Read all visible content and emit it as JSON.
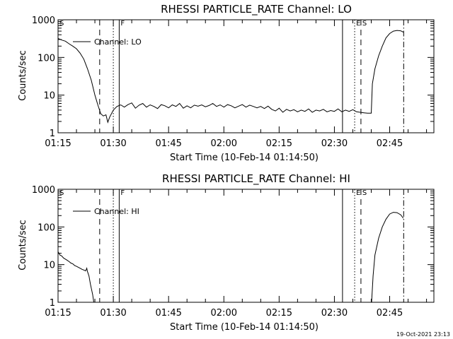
{
  "chart_data": [
    {
      "type": "line",
      "title": "RHESSI PARTICLE_RATE Channel: LO",
      "xlabel": "Start Time (10-Feb-14 01:14:50)",
      "ylabel": "Counts/sec",
      "yscale": "log",
      "ylim": [
        1,
        1000
      ],
      "xlim_minutes": [
        0,
        102
      ],
      "x_tick_labels": [
        "01:15",
        "01:30",
        "01:45",
        "02:00",
        "02:15",
        "02:30",
        "02:45"
      ],
      "x_tick_minutes": [
        0,
        15,
        30,
        45,
        60,
        75,
        90
      ],
      "y_tick_labels": [
        "1",
        "10",
        "100",
        "1000"
      ],
      "y_tick_values": [
        1,
        10,
        100,
        1000
      ],
      "legend": "Channel: LO",
      "segment_markers": [
        {
          "label": "S",
          "minute": 0,
          "style": "none"
        },
        {
          "label": "",
          "minute": 11.3,
          "style": "dashed"
        },
        {
          "label": "",
          "minute": 15,
          "style": "dotted"
        },
        {
          "label": "F",
          "minute": 16.6,
          "style": "solid"
        },
        {
          "label": "",
          "minute": 77.2,
          "style": "solid"
        },
        {
          "label": "E",
          "minute": 80.5,
          "style": "dotted"
        },
        {
          "label": "S",
          "minute": 82.2,
          "style": "dashed"
        },
        {
          "label": "",
          "minute": 93.8,
          "style": "dashdot"
        }
      ],
      "series": [
        {
          "name": "Channel: LO",
          "points": [
            [
              0,
              320
            ],
            [
              1,
              290
            ],
            [
              2,
              270
            ],
            [
              3,
              230
            ],
            [
              4,
              200
            ],
            [
              5,
              170
            ],
            [
              6,
              130
            ],
            [
              7,
              90
            ],
            [
              8,
              50
            ],
            [
              9,
              25
            ],
            [
              10,
              10
            ],
            [
              10.8,
              5.5
            ],
            [
              11.6,
              3.2
            ],
            [
              12.3,
              2.8
            ],
            [
              13,
              3.0
            ],
            [
              13.5,
              1.9
            ],
            [
              14,
              2.6
            ],
            [
              15,
              4
            ],
            [
              16,
              5
            ],
            [
              17,
              5.5
            ],
            [
              18,
              4.8
            ],
            [
              19,
              5.6
            ],
            [
              20,
              6.2
            ],
            [
              21,
              4.5
            ],
            [
              22,
              5.4
            ],
            [
              23,
              6
            ],
            [
              24,
              4.8
            ],
            [
              25,
              5.5
            ],
            [
              26,
              5
            ],
            [
              27,
              4.4
            ],
            [
              28,
              5.6
            ],
            [
              29,
              5.2
            ],
            [
              30,
              4.6
            ],
            [
              31,
              5.5
            ],
            [
              32,
              5
            ],
            [
              33,
              6
            ],
            [
              34,
              4.5
            ],
            [
              35,
              5.2
            ],
            [
              36,
              4.6
            ],
            [
              37,
              5.4
            ],
            [
              38,
              5.1
            ],
            [
              39,
              5.5
            ],
            [
              40,
              4.9
            ],
            [
              41,
              5.3
            ],
            [
              42,
              6
            ],
            [
              43,
              5
            ],
            [
              44,
              5.5
            ],
            [
              45,
              4.8
            ],
            [
              46,
              5.6
            ],
            [
              47,
              5.2
            ],
            [
              48,
              4.6
            ],
            [
              49,
              5.1
            ],
            [
              50,
              5.6
            ],
            [
              51,
              4.8
            ],
            [
              52,
              5.4
            ],
            [
              53,
              5
            ],
            [
              54,
              4.6
            ],
            [
              55,
              5
            ],
            [
              56,
              4.4
            ],
            [
              57,
              5.1
            ],
            [
              58,
              4.2
            ],
            [
              59,
              3.8
            ],
            [
              60,
              4.5
            ],
            [
              61,
              3.5
            ],
            [
              62,
              4.2
            ],
            [
              63,
              3.8
            ],
            [
              64,
              4.1
            ],
            [
              65,
              3.6
            ],
            [
              66,
              4
            ],
            [
              67,
              3.7
            ],
            [
              68,
              4.3
            ],
            [
              69,
              3.5
            ],
            [
              70,
              4
            ],
            [
              71,
              3.8
            ],
            [
              72,
              4.2
            ],
            [
              73,
              3.6
            ],
            [
              74,
              3.9
            ],
            [
              75,
              3.7
            ],
            [
              76,
              4.3
            ],
            [
              77,
              3.6
            ],
            [
              78,
              4
            ],
            [
              79,
              3.7
            ],
            [
              80,
              4.1
            ],
            [
              81,
              3.6
            ],
            [
              82,
              3.5
            ],
            [
              83,
              3.4
            ],
            [
              84,
              3.3
            ],
            [
              85,
              3.3
            ],
            [
              85.3,
              20
            ],
            [
              86,
              50
            ],
            [
              87,
              110
            ],
            [
              88,
              200
            ],
            [
              89,
              330
            ],
            [
              90,
              430
            ],
            [
              91,
              500
            ],
            [
              92,
              520
            ],
            [
              93,
              510
            ],
            [
              93.7,
              470
            ]
          ]
        }
      ]
    },
    {
      "type": "line",
      "title": "RHESSI PARTICLE_RATE Channel: HI",
      "xlabel": "Start Time (10-Feb-14 01:14:50)",
      "ylabel": "Counts/sec",
      "yscale": "log",
      "ylim": [
        1,
        1000
      ],
      "xlim_minutes": [
        0,
        102
      ],
      "x_tick_labels": [
        "01:15",
        "01:30",
        "01:45",
        "02:00",
        "02:15",
        "02:30",
        "02:45"
      ],
      "x_tick_minutes": [
        0,
        15,
        30,
        45,
        60,
        75,
        90
      ],
      "y_tick_labels": [
        "1",
        "10",
        "100",
        "1000"
      ],
      "y_tick_values": [
        1,
        10,
        100,
        1000
      ],
      "legend": "Channel: HI",
      "segment_markers": [
        {
          "label": "S",
          "minute": 0,
          "style": "none"
        },
        {
          "label": "",
          "minute": 11.3,
          "style": "dashed"
        },
        {
          "label": "",
          "minute": 15,
          "style": "dotted"
        },
        {
          "label": "F",
          "minute": 16.6,
          "style": "solid"
        },
        {
          "label": "",
          "minute": 77.2,
          "style": "solid"
        },
        {
          "label": "E",
          "minute": 80.5,
          "style": "dotted"
        },
        {
          "label": "S",
          "minute": 82.2,
          "style": "dashed"
        },
        {
          "label": "",
          "minute": 93.8,
          "style": "dashdot"
        }
      ],
      "series": [
        {
          "name": "Channel: HI",
          "points": [
            [
              0,
              22
            ],
            [
              0.5,
              18
            ],
            [
              1,
              17
            ],
            [
              1.5,
              15
            ],
            [
              2,
              14
            ],
            [
              2.5,
              13
            ],
            [
              3,
              12
            ],
            [
              3.5,
              11
            ],
            [
              4,
              10.5
            ],
            [
              4.5,
              9.5
            ],
            [
              5,
              9
            ],
            [
              5.5,
              8.5
            ],
            [
              6,
              8
            ],
            [
              6.5,
              7.5
            ],
            [
              7,
              7.2
            ],
            [
              7.5,
              6.8
            ],
            [
              7.8,
              8
            ],
            [
              8,
              6.5
            ],
            [
              8.4,
              5
            ],
            [
              8.8,
              3
            ],
            [
              9,
              2.4
            ],
            [
              9.4,
              1.6
            ],
            [
              9.7,
              1
            ],
            [
              85.1,
              1
            ],
            [
              85.5,
              5
            ],
            [
              86,
              18
            ],
            [
              87,
              50
            ],
            [
              88,
              100
            ],
            [
              89,
              160
            ],
            [
              90,
              220
            ],
            [
              91,
              245
            ],
            [
              92,
              240
            ],
            [
              93,
              210
            ],
            [
              93.7,
              170
            ]
          ]
        }
      ]
    }
  ],
  "timestamp": "19-Oct-2021 23:13"
}
